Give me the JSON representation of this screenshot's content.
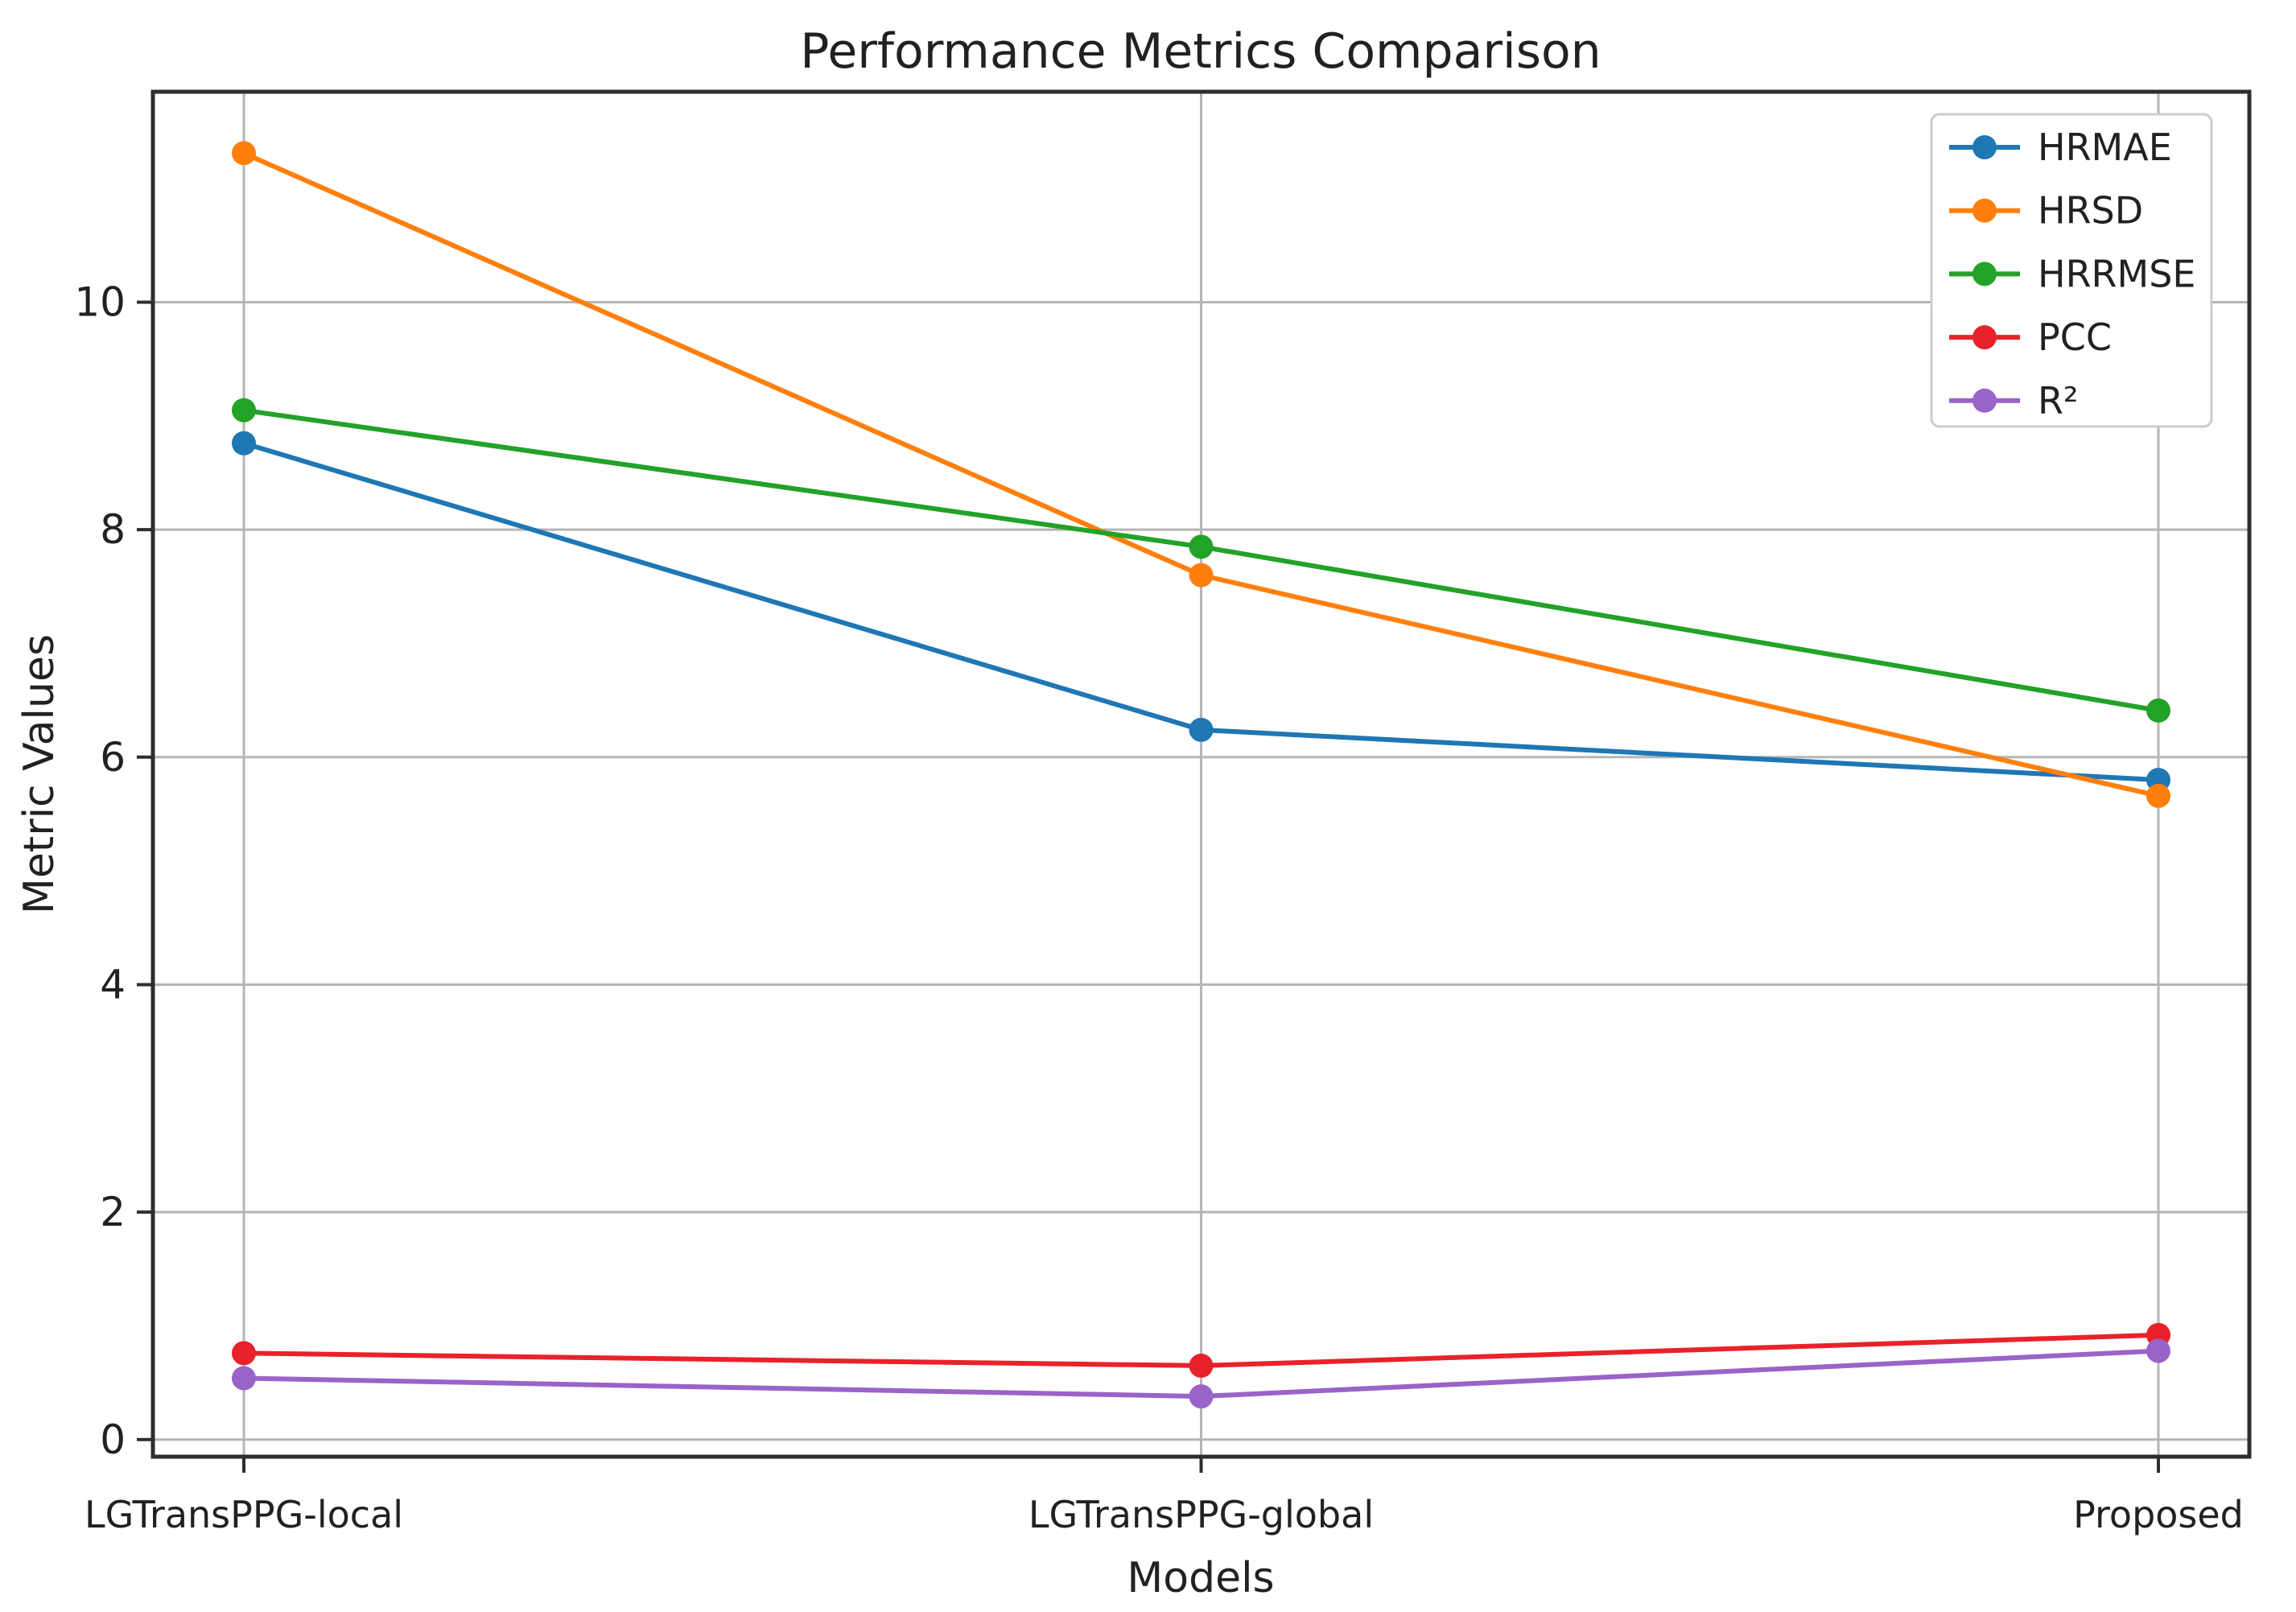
{
  "chart_data": {
    "type": "line",
    "title": "Performance Metrics Comparison",
    "xlabel": "Models",
    "ylabel": "Metric Values",
    "categories": [
      "LGTransPPG-local",
      "LGTransPPG-global",
      "Proposed"
    ],
    "series": [
      {
        "name": "HRMAE",
        "color": "#1f77b4",
        "values": [
          8.76,
          6.24,
          5.8
        ]
      },
      {
        "name": "HRSD",
        "color": "#ff7f0e",
        "values": [
          11.31,
          7.6,
          5.66
        ]
      },
      {
        "name": "HRRMSE",
        "color": "#23a228",
        "values": [
          9.05,
          7.85,
          6.41
        ]
      },
      {
        "name": "PCC",
        "color": "#e8222a",
        "values": [
          0.76,
          0.65,
          0.92
        ]
      },
      {
        "name": "R²",
        "color": "#9a63c8",
        "values": [
          0.54,
          0.38,
          0.78
        ]
      }
    ],
    "yticks": [
      0,
      2,
      4,
      6,
      8,
      10
    ],
    "ylim": [
      -0.15,
      11.85
    ],
    "grid": true,
    "legend_position": "top-right",
    "axis_color": "#2e2e2e",
    "grid_color": "#b5b5b5",
    "legend_border_color": "#cccccc",
    "text_color": "#212121"
  }
}
